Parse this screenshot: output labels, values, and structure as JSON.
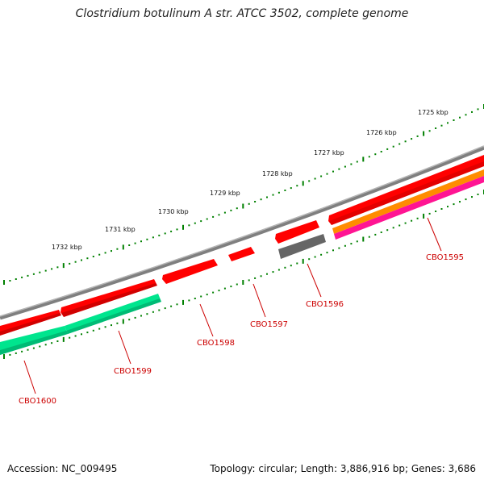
{
  "title": "Clostridium botulinum A str. ATCC 3502, complete genome",
  "footer": {
    "accession": "Accession: NC_009495",
    "summary": "Topology: circular; Length: 3,886,916 bp; Genes: 3,686"
  },
  "colors": {
    "backbone": "#7f7f7f",
    "forward_cds": "#ff0000",
    "reverse_cds": "#00e58e",
    "ruler": "#008000",
    "gene_label": "#cc0000",
    "gray_feature": "#666666",
    "orange_feature": "#ff8c00",
    "magenta_feature": "#ff1493"
  },
  "ruler_labels": [
    {
      "label": "1725 kbp"
    },
    {
      "label": "1726 kbp"
    },
    {
      "label": "1727 kbp"
    },
    {
      "label": "1728 kbp"
    },
    {
      "label": "1729 kbp"
    },
    {
      "label": "1730 kbp"
    },
    {
      "label": "1731 kbp"
    },
    {
      "label": "1732 kbp"
    }
  ],
  "genes": [
    {
      "name": "CBO1595"
    },
    {
      "name": "CBO1596"
    },
    {
      "name": "CBO1597"
    },
    {
      "name": "CBO1598"
    },
    {
      "name": "CBO1599"
    },
    {
      "name": "CBO1600"
    }
  ]
}
